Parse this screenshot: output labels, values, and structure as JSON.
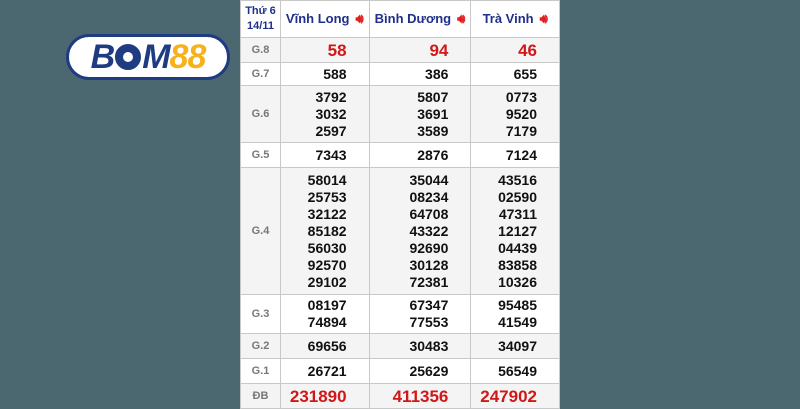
{
  "logo": {
    "text": "BOM88",
    "part1": "B",
    "part2": "M",
    "part3": "88"
  },
  "header": {
    "day": "Thứ 6",
    "date": "14/11",
    "provinces": [
      "Vĩnh Long",
      "Bình Dương",
      "Trà Vinh"
    ],
    "speaker_icon": "speaker-icon"
  },
  "rows": [
    {
      "label": "G.8",
      "values": [
        [
          "58"
        ],
        [
          "94"
        ],
        [
          "46"
        ]
      ],
      "highlight": true
    },
    {
      "label": "G.7",
      "values": [
        [
          "588"
        ],
        [
          "386"
        ],
        [
          "655"
        ]
      ]
    },
    {
      "label": "G.6",
      "values": [
        [
          "3792",
          "3032",
          "2597"
        ],
        [
          "5807",
          "3691",
          "3589"
        ],
        [
          "0773",
          "9520",
          "7179"
        ]
      ]
    },
    {
      "label": "G.5",
      "values": [
        [
          "7343"
        ],
        [
          "2876"
        ],
        [
          "7124"
        ]
      ]
    },
    {
      "label": "G.4",
      "values": [
        [
          "58014",
          "25753",
          "32122",
          "85182",
          "56030",
          "92570",
          "29102"
        ],
        [
          "35044",
          "08234",
          "64708",
          "43322",
          "92690",
          "30128",
          "72381"
        ],
        [
          "43516",
          "02590",
          "47311",
          "12127",
          "04439",
          "83858",
          "10326"
        ]
      ]
    },
    {
      "label": "G.3",
      "values": [
        [
          "08197",
          "74894"
        ],
        [
          "67347",
          "77553"
        ],
        [
          "95485",
          "41549"
        ]
      ]
    },
    {
      "label": "G.2",
      "values": [
        [
          "69656"
        ],
        [
          "30483"
        ],
        [
          "34097"
        ]
      ]
    },
    {
      "label": "G.1",
      "values": [
        [
          "26721"
        ],
        [
          "25629"
        ],
        [
          "56549"
        ]
      ]
    },
    {
      "label": "ĐB",
      "values": [
        [
          "231890"
        ],
        [
          "411356"
        ],
        [
          "247902"
        ]
      ],
      "special": true
    }
  ],
  "colors": {
    "background": "#4b6870",
    "highlight": "#d01818",
    "header_text": "#1f2f8a",
    "logo_blue": "#1f3c83",
    "logo_yellow": "#f6b21b"
  }
}
